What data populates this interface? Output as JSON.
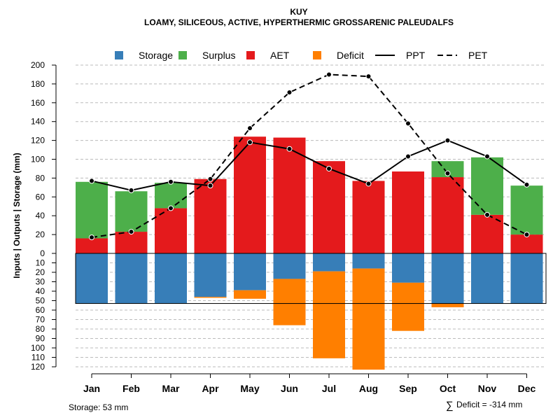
{
  "chart_data": {
    "type": "bar",
    "title": "KUY",
    "subtitle": "LOAMY, SILICEOUS, ACTIVE, HYPERTHERMIC GROSSARENIC PALEUDALFS",
    "ylabel": "Inputs | Outputs | Storage    (mm)",
    "upper_ylim": [
      0,
      200
    ],
    "upper_ticks": [
      0,
      20,
      40,
      60,
      80,
      100,
      120,
      140,
      160,
      180,
      200
    ],
    "lower_ylim": [
      0,
      120
    ],
    "lower_ticks": [
      0,
      10,
      20,
      30,
      40,
      50,
      60,
      70,
      80,
      90,
      100,
      110,
      120
    ],
    "categories": [
      "Jan",
      "Feb",
      "Mar",
      "Apr",
      "May",
      "Jun",
      "Jul",
      "Aug",
      "Sep",
      "Oct",
      "Nov",
      "Dec"
    ],
    "aet": [
      16,
      23,
      48,
      79,
      124,
      123,
      98,
      77,
      87,
      81,
      41,
      20
    ],
    "surplus": [
      60,
      43,
      27,
      0,
      0,
      0,
      0,
      0,
      0,
      17,
      61,
      52
    ],
    "storage": [
      53,
      53,
      53,
      46,
      39,
      27,
      19,
      16,
      31,
      53,
      53,
      53
    ],
    "deficit": [
      0,
      0,
      0,
      1,
      9,
      49,
      92,
      107,
      51,
      4,
      0,
      0
    ],
    "ppt": [
      77,
      67,
      76,
      72,
      118,
      111,
      90,
      74,
      103,
      120,
      103,
      73
    ],
    "pet": [
      17,
      23,
      48,
      79,
      133,
      171,
      190,
      188,
      138,
      85,
      41,
      20
    ],
    "awc_line": 53,
    "legend": [
      {
        "name": "Storage",
        "kind": "box",
        "color": "#377EB8"
      },
      {
        "name": "Surplus",
        "kind": "box",
        "color": "#4DAF4A"
      },
      {
        "name": "AET",
        "kind": "box",
        "color": "#E41A1C"
      },
      {
        "name": "Deficit",
        "kind": "box",
        "color": "#FF7F00"
      },
      {
        "name": "PPT",
        "kind": "solid",
        "color": "#000000"
      },
      {
        "name": "PET",
        "kind": "dashed",
        "color": "#000000"
      }
    ],
    "colors": {
      "storage": "#377EB8",
      "surplus": "#4DAF4A",
      "aet": "#E41A1C",
      "deficit": "#FF7F00",
      "grid": "#bbbbbb",
      "line": "#000000"
    },
    "footnote_left": "Storage: 53 mm",
    "footnote_right_symbol": "∑",
    "footnote_right": "Deficit = -314 mm"
  }
}
